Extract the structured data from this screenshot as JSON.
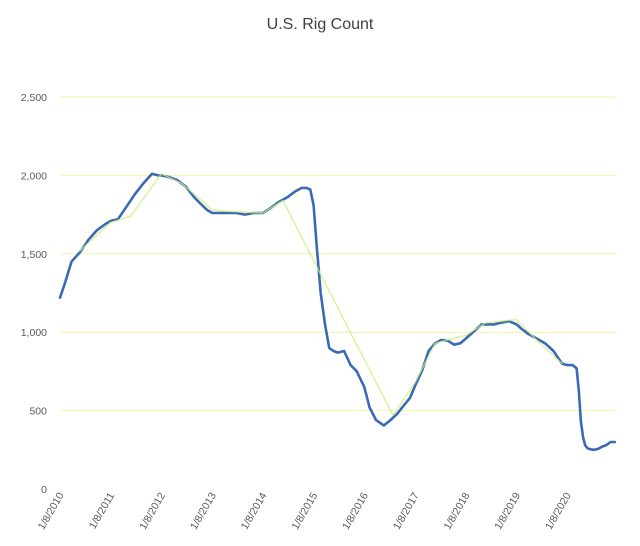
{
  "chart_data": {
    "type": "line",
    "title": "U.S. Rig Count",
    "xlabel": "",
    "ylabel": "",
    "ylim": [
      0,
      2500
    ],
    "yticks": [
      0,
      500,
      1000,
      1500,
      2000,
      2500
    ],
    "ytick_labels": [
      "0",
      "500",
      "1,000",
      "1,500",
      "2,000",
      "2,500"
    ],
    "xlim": [
      "2010-01-08",
      "2020-12-31"
    ],
    "xticks": [
      "2010-01-08",
      "2011-01-08",
      "2012-01-08",
      "2013-01-08",
      "2014-01-08",
      "2015-01-08",
      "2016-01-08",
      "2017-01-08",
      "2018-01-08",
      "2019-01-08",
      "2020-01-08"
    ],
    "xtick_labels": [
      "1/8/2010",
      "1/8/2011",
      "1/8/2012",
      "1/8/2013",
      "1/8/2014",
      "1/8/2015",
      "1/8/2016",
      "1/8/2017",
      "1/8/2018",
      "1/8/2019",
      "1/8/2020"
    ],
    "grid": true,
    "legend": "none",
    "colors": {
      "main": "#3a6ab4",
      "secondary": "#c8f07a",
      "grid": "#f2f2a8",
      "tick_text": "#595959",
      "title_text": "#404040"
    },
    "series": [
      {
        "x": [
          "2010-01-08",
          "2010-02-15",
          "2010-04-01",
          "2010-06-01",
          "2010-08-01",
          "2010-10-01",
          "2010-12-01",
          "2011-01-08",
          "2011-03-01",
          "2011-05-01",
          "2011-07-01",
          "2011-09-01",
          "2011-11-01",
          "2011-12-15",
          "2012-01-08",
          "2012-03-01",
          "2012-05-01",
          "2012-07-01",
          "2012-09-01",
          "2012-10-15",
          "2012-12-01",
          "2013-01-08",
          "2013-03-01",
          "2013-05-01",
          "2013-07-01",
          "2013-09-01",
          "2013-11-01",
          "2014-01-08",
          "2014-03-01",
          "2014-05-01",
          "2014-07-01",
          "2014-09-01",
          "2014-10-15",
          "2014-11-15",
          "2014-12-15",
          "2015-01-08",
          "2015-01-30",
          "2015-02-28",
          "2015-03-31",
          "2015-04-30",
          "2015-05-31",
          "2015-07-01",
          "2015-08-15",
          "2015-10-01",
          "2015-11-15",
          "2016-01-08",
          "2016-02-15",
          "2016-04-01",
          "2016-05-27",
          "2016-07-15",
          "2016-09-01",
          "2016-10-15",
          "2016-12-01",
          "2017-01-08",
          "2017-03-01",
          "2017-04-15",
          "2017-06-01",
          "2017-07-15",
          "2017-09-01",
          "2017-10-15",
          "2017-12-01",
          "2018-01-08",
          "2018-03-01",
          "2018-05-01",
          "2018-06-15",
          "2018-08-01",
          "2018-09-15",
          "2018-11-15",
          "2019-01-08",
          "2019-02-15",
          "2019-04-01",
          "2019-06-01",
          "2019-08-01",
          "2019-10-01",
          "2019-12-01",
          "2020-01-08",
          "2020-02-15",
          "2020-03-15",
          "2020-04-01",
          "2020-04-15",
          "2020-05-01",
          "2020-05-15",
          "2020-06-01",
          "2020-06-15",
          "2020-07-15",
          "2020-08-15",
          "2020-09-15",
          "2020-10-15",
          "2020-11-15",
          "2020-12-15"
        ],
        "y": [
          1220,
          1320,
          1450,
          1510,
          1590,
          1650,
          1690,
          1710,
          1720,
          1800,
          1880,
          1950,
          2010,
          2000,
          2000,
          1990,
          1970,
          1930,
          1860,
          1820,
          1780,
          1760,
          1760,
          1760,
          1760,
          1750,
          1760,
          1760,
          1790,
          1830,
          1860,
          1900,
          1920,
          1920,
          1910,
          1810,
          1550,
          1250,
          1050,
          900,
          880,
          870,
          880,
          790,
          750,
          650,
          520,
          440,
          405,
          440,
          480,
          530,
          580,
          660,
          760,
          880,
          930,
          950,
          945,
          920,
          930,
          960,
          1000,
          1050,
          1050,
          1050,
          1060,
          1070,
          1050,
          1020,
          990,
          960,
          930,
          880,
          800,
          790,
          790,
          770,
          620,
          430,
          330,
          280,
          260,
          255,
          250,
          255,
          270,
          280,
          300,
          300
        ]
      },
      {
        "x": [
          "2010-06-01",
          "2011-01-08",
          "2011-06-01",
          "2012-01-08",
          "2012-06-01",
          "2013-01-08",
          "2013-06-01",
          "2014-01-08",
          "2014-06-01",
          "2016-08-01",
          "2017-01-08",
          "2017-06-01",
          "2018-01-08",
          "2018-06-01",
          "2019-01-08",
          "2019-06-01",
          "2019-12-01"
        ],
        "y": [
          1520,
          1700,
          1740,
          2010,
          1950,
          1780,
          1770,
          1760,
          1840,
          470,
          680,
          930,
          980,
          1060,
          1080,
          950,
          800
        ]
      }
    ]
  }
}
